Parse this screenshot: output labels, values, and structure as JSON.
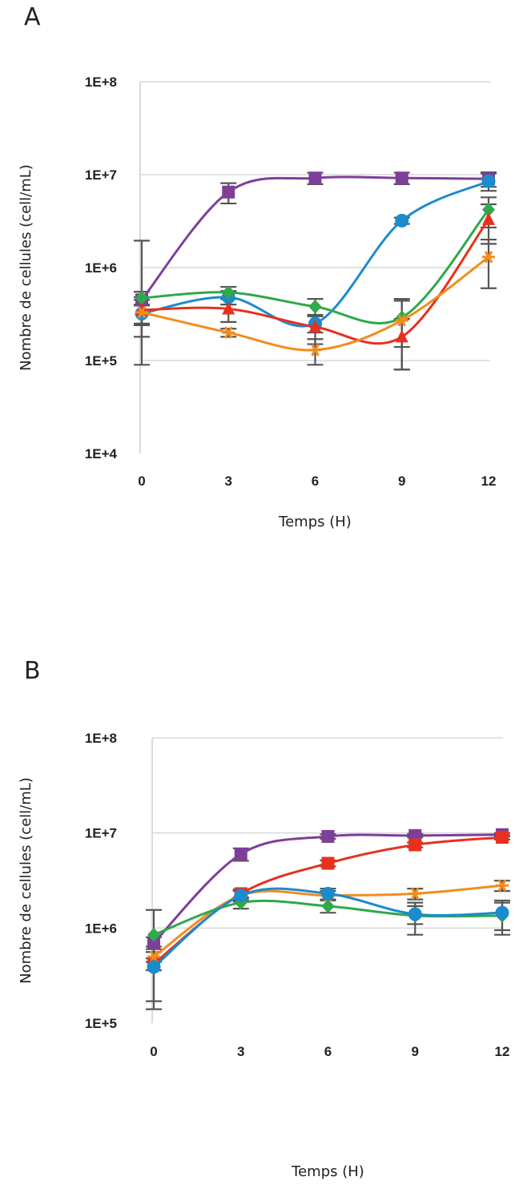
{
  "chart_data": [
    {
      "type": "line",
      "panel_label": "A",
      "xlabel": "Temps (H)",
      "ylabel": "Nombre de cellules (cell/mL)",
      "x": [
        0,
        3,
        6,
        9,
        12
      ],
      "x_ticks": [
        "0",
        "3",
        "6",
        "9",
        "12"
      ],
      "y_scale": "log",
      "ylim": [
        10000,
        100000000
      ],
      "y_ticks": [
        "1E+4",
        "1E+5",
        "1E+6",
        "1E+7",
        "1E+8"
      ],
      "grid": true,
      "series": [
        {
          "color": "#7e3f98",
          "marker": "square",
          "values": [
            450000,
            6500000,
            9200000,
            9200000,
            9000000
          ],
          "err": [
            1500000,
            1600000,
            1300000,
            1300000,
            1600000
          ]
        },
        {
          "color": "#1b8bcc",
          "marker": "circle",
          "values": [
            320000,
            480000,
            250000,
            3200000,
            8500000
          ],
          "err": [
            80000,
            80000,
            50000,
            250000,
            1800000
          ]
        },
        {
          "color": "#30a84c",
          "marker": "diamond",
          "values": [
            470000,
            540000,
            380000,
            290000,
            4200000
          ],
          "err": [
            80000,
            80000,
            80000,
            150000,
            1500000
          ]
        },
        {
          "color": "#e8301f",
          "marker": "triangle",
          "values": [
            350000,
            360000,
            230000,
            180000,
            3300000
          ],
          "err": [
            100000,
            100000,
            80000,
            100000,
            1500000
          ]
        },
        {
          "color": "#f28c1e",
          "marker": "star",
          "values": [
            330000,
            200000,
            130000,
            270000,
            1300000
          ],
          "err": [
            150000,
            20000,
            40000,
            190000,
            700000
          ]
        }
      ]
    },
    {
      "type": "line",
      "panel_label": "B",
      "xlabel": "Temps (H)",
      "ylabel": "Nombre de cellules (cell/mL)",
      "x": [
        0,
        3,
        6,
        9,
        12
      ],
      "x_ticks": [
        "0",
        "3",
        "6",
        "9",
        "12"
      ],
      "y_scale": "log",
      "ylim": [
        100000,
        100000000
      ],
      "y_ticks": [
        "1E+5",
        "1E+6",
        "1E+7",
        "1E+8"
      ],
      "grid": true,
      "series": [
        {
          "color": "#7e3f98",
          "marker": "square",
          "values": [
            700000,
            6000000,
            9200000,
            9400000,
            9600000
          ],
          "err": [
            100000,
            900000,
            500000,
            400000,
            400000
          ]
        },
        {
          "color": "#e8301f",
          "marker": "square",
          "values": [
            420000,
            2300000,
            4800000,
            7500000,
            9000000
          ],
          "err": [
            60000,
            250000,
            350000,
            450000,
            450000
          ]
        },
        {
          "color": "#f28c1e",
          "marker": "star",
          "values": [
            500000,
            2200000,
            2200000,
            2300000,
            2800000
          ],
          "err": [
            60000,
            250000,
            250000,
            300000,
            350000
          ]
        },
        {
          "color": "#30a84c",
          "marker": "diamond",
          "values": [
            850000,
            1850000,
            1700000,
            1350000,
            1350000
          ],
          "err": [
            700000,
            250000,
            250000,
            500000,
            500000
          ]
        },
        {
          "color": "#1b8bcc",
          "marker": "circle",
          "values": [
            390000,
            2200000,
            2300000,
            1400000,
            1450000
          ],
          "err": [
            250000,
            300000,
            300000,
            300000,
            500000
          ]
        }
      ]
    }
  ]
}
